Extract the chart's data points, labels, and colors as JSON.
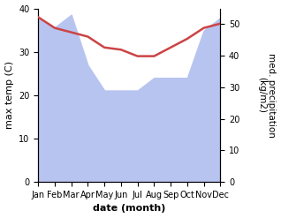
{
  "months": [
    "Jan",
    "Feb",
    "Mar",
    "Apr",
    "May",
    "Jun",
    "Jul",
    "Aug",
    "Sep",
    "Oct",
    "Nov",
    "Dec"
  ],
  "x": [
    0,
    1,
    2,
    3,
    4,
    5,
    6,
    7,
    8,
    9,
    10,
    11
  ],
  "temperature": [
    38.0,
    35.5,
    34.5,
    33.5,
    31.0,
    30.5,
    29.0,
    29.0,
    31.0,
    33.0,
    35.5,
    36.5
  ],
  "precipitation_kg": [
    52,
    49,
    53,
    37,
    29,
    29,
    29,
    33,
    33,
    33,
    48,
    52
  ],
  "precip_fill_color": "#b8c4f0",
  "temp_color": "#cc4444",
  "temp_ylim": [
    0,
    40
  ],
  "precip_ylim": [
    0,
    55
  ],
  "temp_yticks": [
    0,
    10,
    20,
    30,
    40
  ],
  "precip_yticks": [
    0,
    10,
    20,
    30,
    40,
    50
  ],
  "xlabel": "date (month)",
  "ylabel_left": "max temp (C)",
  "ylabel_right": "med. precipitation\n(kg/m2)",
  "figsize": [
    3.18,
    2.47
  ],
  "dpi": 100
}
